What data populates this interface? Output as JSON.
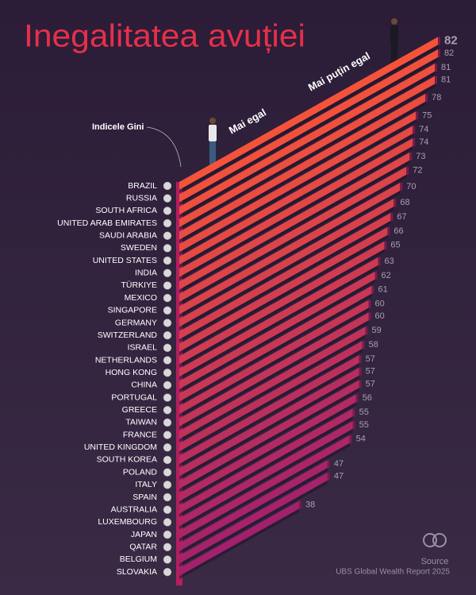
{
  "chart_data": {
    "type": "bar",
    "title": "Inegalitatea avuției",
    "axis_label": "Indicele Gini",
    "annotations": [
      "Mai egal",
      "Mai puțin egal"
    ],
    "source_label": "Source",
    "source": "UBS Global Wealth Report 2025",
    "categories": [
      "BRAZIL",
      "RUSSIA",
      "SOUTH AFRICA",
      "UNITED ARAB EMIRATES",
      "SAUDI ARABIA",
      "SWEDEN",
      "UNITED STATES",
      "INDIA",
      "TÜRKIYE",
      "MEXICO",
      "SINGAPORE",
      "GERMANY",
      "SWITZERLAND",
      "ISRAEL",
      "NETHERLANDS",
      "HONG KONG",
      "CHINA",
      "PORTUGAL",
      "GREECE",
      "TAIWAN",
      "FRANCE",
      "UNITED KINGDOM",
      "SOUTH KOREA",
      "POLAND",
      "ITALY",
      "SPAIN",
      "AUSTRALIA",
      "LUXEMBOURG",
      "JAPAN",
      "QATAR",
      "BELGIUM",
      "SLOVAKIA"
    ],
    "values": [
      82,
      82,
      81,
      81,
      78,
      75,
      74,
      74,
      73,
      72,
      70,
      68,
      67,
      66,
      65,
      63,
      62,
      61,
      60,
      60,
      59,
      58,
      57,
      57,
      57,
      56,
      55,
      55,
      54,
      47,
      47,
      38
    ],
    "color_top": "#f4533a",
    "color_bottom": "#a3206c"
  }
}
